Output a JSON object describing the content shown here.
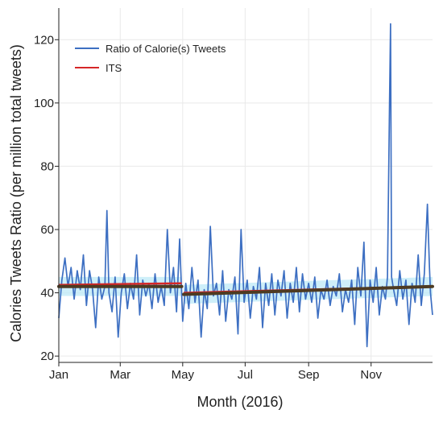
{
  "chart_data": {
    "type": "line",
    "xlabel": "Month (2016)",
    "ylabel": "Calories Tweets Ratio (per million total tweets)",
    "xlim": [
      1,
      366
    ],
    "ylim": [
      18,
      130
    ],
    "x_ticks": [
      {
        "day": 1,
        "label": "Jan"
      },
      {
        "day": 61,
        "label": "Mar"
      },
      {
        "day": 122,
        "label": "May"
      },
      {
        "day": 183,
        "label": "Jul"
      },
      {
        "day": 245,
        "label": "Sep"
      },
      {
        "day": 306,
        "label": "Nov"
      }
    ],
    "y_ticks": [
      20,
      40,
      60,
      80,
      100,
      120
    ],
    "grid": true,
    "legend_position": "top-left",
    "colors": {
      "ratio": "#3d6fc2",
      "its": "#d62728",
      "trend": "#4d3b22",
      "band": "#bde9f7",
      "axis": "#222222",
      "grid": "#e9e9e9"
    },
    "series": [
      {
        "name": "Ratio of Calorie(s) Tweets",
        "points": [
          [
            1,
            32
          ],
          [
            4,
            44
          ],
          [
            7,
            51
          ],
          [
            10,
            42
          ],
          [
            13,
            48
          ],
          [
            16,
            38
          ],
          [
            19,
            47
          ],
          [
            22,
            41
          ],
          [
            25,
            52
          ],
          [
            28,
            36
          ],
          [
            31,
            47
          ],
          [
            34,
            41
          ],
          [
            37,
            29
          ],
          [
            40,
            45
          ],
          [
            43,
            38
          ],
          [
            46,
            42
          ],
          [
            48,
            66
          ],
          [
            50,
            40
          ],
          [
            53,
            34
          ],
          [
            56,
            45
          ],
          [
            59,
            26
          ],
          [
            62,
            40
          ],
          [
            65,
            46
          ],
          [
            68,
            35
          ],
          [
            71,
            43
          ],
          [
            74,
            38
          ],
          [
            77,
            52
          ],
          [
            80,
            33
          ],
          [
            83,
            44
          ],
          [
            86,
            39
          ],
          [
            89,
            43
          ],
          [
            92,
            35
          ],
          [
            95,
            46
          ],
          [
            98,
            37
          ],
          [
            101,
            42
          ],
          [
            104,
            36
          ],
          [
            107,
            60
          ],
          [
            110,
            40
          ],
          [
            113,
            48
          ],
          [
            116,
            34
          ],
          [
            119,
            57
          ],
          [
            122,
            31
          ],
          [
            125,
            43
          ],
          [
            128,
            35
          ],
          [
            131,
            48
          ],
          [
            134,
            37
          ],
          [
            137,
            44
          ],
          [
            140,
            26
          ],
          [
            143,
            41
          ],
          [
            146,
            35
          ],
          [
            149,
            61
          ],
          [
            152,
            39
          ],
          [
            155,
            43
          ],
          [
            158,
            33
          ],
          [
            161,
            47
          ],
          [
            164,
            31
          ],
          [
            167,
            41
          ],
          [
            170,
            38
          ],
          [
            173,
            45
          ],
          [
            176,
            27
          ],
          [
            179,
            60
          ],
          [
            182,
            37
          ],
          [
            185,
            44
          ],
          [
            188,
            32
          ],
          [
            191,
            42
          ],
          [
            194,
            38
          ],
          [
            197,
            48
          ],
          [
            200,
            29
          ],
          [
            203,
            43
          ],
          [
            206,
            36
          ],
          [
            209,
            46
          ],
          [
            212,
            33
          ],
          [
            215,
            44
          ],
          [
            218,
            39
          ],
          [
            221,
            47
          ],
          [
            224,
            32
          ],
          [
            227,
            43
          ],
          [
            230,
            37
          ],
          [
            233,
            48
          ],
          [
            236,
            34
          ],
          [
            239,
            46
          ],
          [
            242,
            38
          ],
          [
            245,
            43
          ],
          [
            248,
            37
          ],
          [
            251,
            45
          ],
          [
            254,
            32
          ],
          [
            257,
            41
          ],
          [
            260,
            38
          ],
          [
            263,
            44
          ],
          [
            266,
            36
          ],
          [
            269,
            42
          ],
          [
            272,
            39
          ],
          [
            275,
            46
          ],
          [
            278,
            34
          ],
          [
            281,
            41
          ],
          [
            284,
            37
          ],
          [
            287,
            44
          ],
          [
            290,
            30
          ],
          [
            293,
            48
          ],
          [
            296,
            39
          ],
          [
            299,
            56
          ],
          [
            302,
            23
          ],
          [
            305,
            44
          ],
          [
            308,
            37
          ],
          [
            311,
            48
          ],
          [
            314,
            33
          ],
          [
            317,
            42
          ],
          [
            320,
            38
          ],
          [
            322,
            45
          ],
          [
            324,
            100
          ],
          [
            325,
            125
          ],
          [
            326,
            45
          ],
          [
            328,
            41
          ],
          [
            331,
            36
          ],
          [
            334,
            47
          ],
          [
            337,
            38
          ],
          [
            340,
            44
          ],
          [
            343,
            30
          ],
          [
            346,
            43
          ],
          [
            349,
            37
          ],
          [
            352,
            52
          ],
          [
            355,
            36
          ],
          [
            358,
            46
          ],
          [
            361,
            68
          ],
          [
            363,
            48
          ],
          [
            364,
            40
          ],
          [
            366,
            33
          ]
        ]
      },
      {
        "name": "ITS",
        "segments": [
          {
            "from": [
              1,
              42.5
            ],
            "to": [
              121,
              43.0
            ]
          },
          {
            "from": [
              123,
              40.0
            ],
            "to": [
              366,
              42.0
            ]
          }
        ]
      }
    ],
    "trend_segments": [
      {
        "from": [
          1,
          42.0
        ],
        "to": [
          121,
          42.0
        ]
      },
      {
        "from": [
          123,
          39.5
        ],
        "to": [
          366,
          42.0
        ]
      }
    ]
  }
}
